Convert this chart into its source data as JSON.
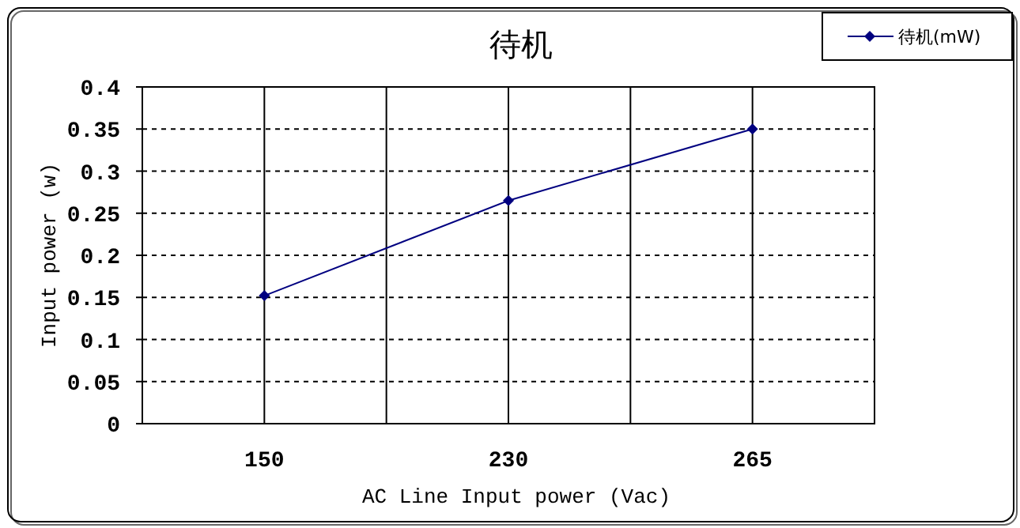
{
  "chart_data": {
    "type": "line",
    "title": "待机",
    "xlabel": "AC Line Input power (Vac)",
    "ylabel": "Input power (w)",
    "categories": [
      "150",
      "230",
      "265"
    ],
    "series": [
      {
        "name": "待机(mW)",
        "color": "#000080",
        "values": [
          0.152,
          0.265,
          0.35
        ]
      }
    ],
    "ylim": [
      0,
      0.4
    ],
    "yticks": [
      0,
      0.05,
      0.1,
      0.15,
      0.2,
      0.25,
      0.3,
      0.35,
      0.4
    ],
    "grid": true,
    "legend": "top right",
    "marker": "diamond",
    "line_style": "solid"
  }
}
